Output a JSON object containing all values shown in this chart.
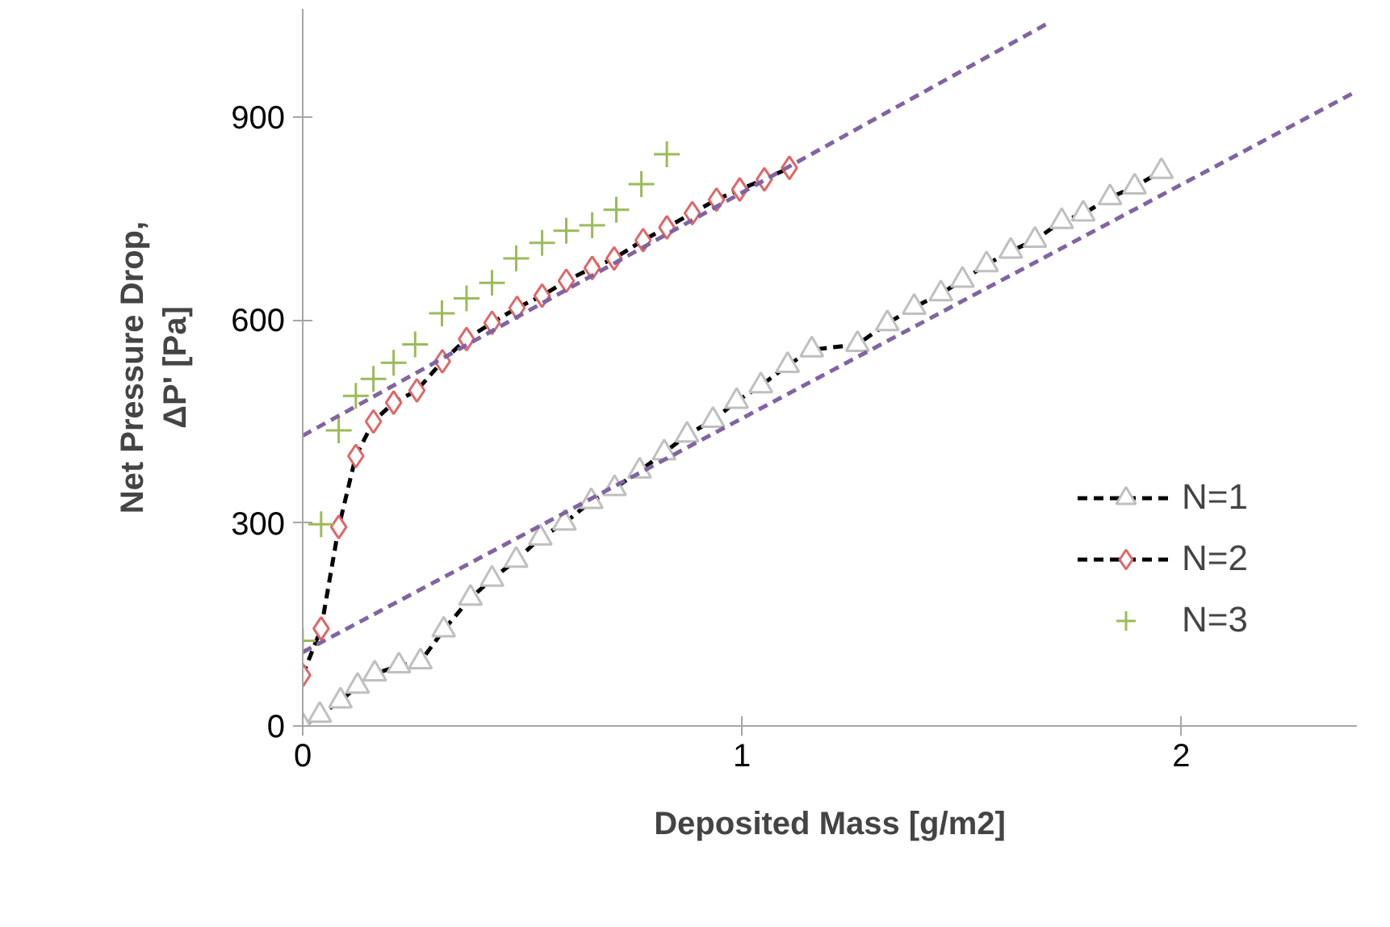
{
  "chart_data": {
    "type": "scatter",
    "xlabel": "Deposited Mass [g/m2]",
    "ylabel": "Net Pressure Drop,\nΔP' [Pa]",
    "xlim": [
      0,
      2.4
    ],
    "ylim": [
      0,
      1060
    ],
    "xticks": [
      0,
      1,
      2
    ],
    "yticks": [
      0,
      300,
      600,
      900
    ],
    "grid": false,
    "legend": "right",
    "series": [
      {
        "name": "N=1",
        "type": "line",
        "color": "#bfbfbf",
        "marker": "triangle",
        "line_style": "dashed",
        "x": [
          0,
          0.039,
          0.086,
          0.125,
          0.164,
          0.219,
          0.268,
          0.321,
          0.382,
          0.431,
          0.486,
          0.541,
          0.596,
          0.657,
          0.71,
          0.767,
          0.823,
          0.875,
          0.934,
          0.988,
          1.043,
          1.104,
          1.159,
          1.263,
          1.331,
          1.392,
          1.453,
          1.502,
          1.557,
          1.612,
          1.667,
          1.728,
          1.777,
          1.838,
          1.894,
          1.955
        ],
        "values": [
          0,
          16,
          37,
          59,
          77,
          89,
          95,
          142,
          189,
          217,
          245,
          278,
          300,
          332,
          351,
          377,
          404,
          430,
          452,
          480,
          503,
          533,
          556,
          564,
          595,
          619,
          639,
          659,
          682,
          702,
          718,
          746,
          757,
          781,
          797,
          820
        ]
      },
      {
        "name": "N=2",
        "type": "line",
        "color": "#e06666",
        "marker": "diamond",
        "line_style": "dashed",
        "x": [
          0,
          0.042,
          0.082,
          0.121,
          0.161,
          0.207,
          0.26,
          0.318,
          0.373,
          0.431,
          0.488,
          0.545,
          0.6,
          0.659,
          0.709,
          0.775,
          0.829,
          0.887,
          0.942,
          0.995,
          1.051,
          1.108
        ],
        "values": [
          75,
          144,
          294,
          399,
          450,
          478,
          496,
          539,
          572,
          596,
          618,
          636,
          658,
          677,
          691,
          718,
          737,
          758,
          778,
          793,
          808,
          825
        ]
      },
      {
        "name": "N=3",
        "color": "#9bbb59",
        "marker": "cross",
        "x": [
          0,
          0.042,
          0.082,
          0.121,
          0.161,
          0.207,
          0.256,
          0.317,
          0.373,
          0.431,
          0.486,
          0.545,
          0.6,
          0.659,
          0.714,
          0.771,
          0.829
        ],
        "values": [
          126,
          298,
          437,
          488,
          513,
          537,
          564,
          610,
          632,
          655,
          691,
          714,
          732,
          740,
          763,
          801,
          845
        ]
      },
      {
        "type": "line",
        "color": "#8064a2",
        "marker": "none",
        "line_style": "dashed",
        "x": [
          0,
          2.39
        ],
        "values": [
          109,
          935
        ]
      },
      {
        "type": "line",
        "color": "#8064a2",
        "marker": "none",
        "line_style": "dashed",
        "x": [
          0,
          1.7
        ],
        "values": [
          429,
          1040
        ]
      }
    ]
  }
}
